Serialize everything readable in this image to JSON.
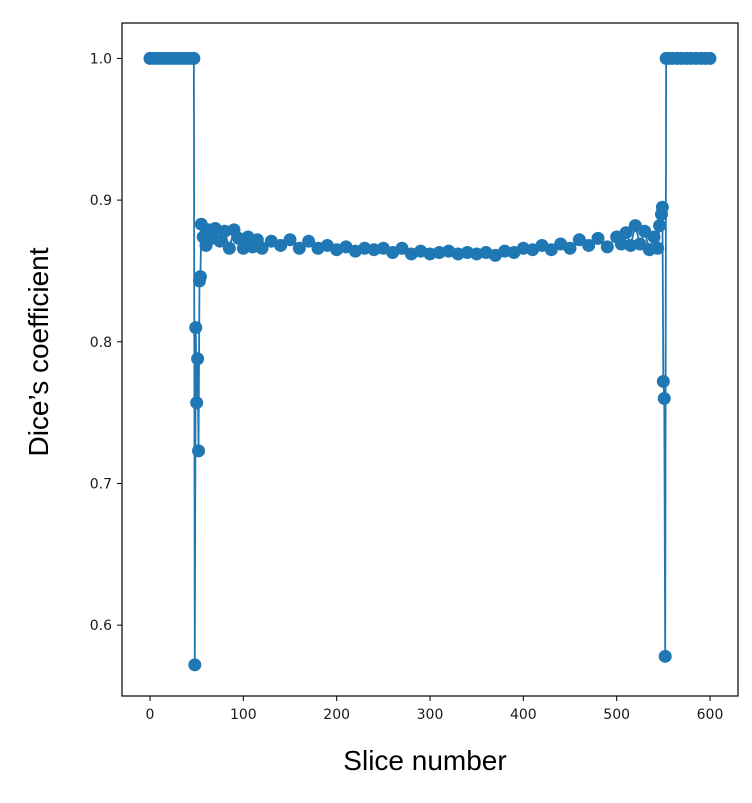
{
  "chart_data": {
    "type": "line",
    "title": "",
    "xlabel": "Slice number",
    "ylabel": "Dice’s coefficient",
    "xlim": [
      -30,
      630
    ],
    "ylim": [
      0.55,
      1.025
    ],
    "xticks": [
      0,
      100,
      200,
      300,
      400,
      500,
      600
    ],
    "xtick_labels": [
      "0",
      "100",
      "200",
      "300",
      "400",
      "500",
      "600"
    ],
    "yticks": [
      0.6,
      0.7,
      0.8,
      0.9,
      1.0
    ],
    "ytick_labels": [
      "0.6",
      "0.7",
      "0.8",
      "0.9",
      "1.0"
    ],
    "grid": false,
    "legend": "none",
    "marker": "circle",
    "color": "#1f77b4",
    "series": [
      {
        "x": [
          0,
          4,
          8,
          12,
          16,
          20,
          24,
          28,
          32,
          36,
          40,
          44,
          47,
          48,
          49,
          50,
          51,
          52,
          53,
          54,
          55,
          57,
          60,
          63,
          66,
          70,
          75,
          80,
          85,
          90,
          95,
          100,
          105,
          110,
          115,
          120,
          130,
          140,
          150,
          160,
          170,
          180,
          190,
          200,
          210,
          220,
          230,
          240,
          250,
          260,
          270,
          280,
          290,
          300,
          310,
          320,
          330,
          340,
          350,
          360,
          370,
          380,
          390,
          400,
          410,
          420,
          430,
          440,
          450,
          460,
          470,
          480,
          490,
          500,
          505,
          510,
          515,
          520,
          525,
          530,
          535,
          540,
          544,
          546,
          548,
          549,
          550,
          551,
          552,
          553,
          556,
          560,
          565,
          570,
          575,
          580,
          585,
          590,
          595,
          600
        ],
        "y": [
          1.0,
          1.0,
          1.0,
          1.0,
          1.0,
          1.0,
          1.0,
          1.0,
          1.0,
          1.0,
          1.0,
          1.0,
          1.0,
          0.572,
          0.81,
          0.757,
          0.788,
          0.723,
          0.843,
          0.846,
          0.883,
          0.874,
          0.868,
          0.879,
          0.873,
          0.88,
          0.871,
          0.878,
          0.866,
          0.879,
          0.873,
          0.866,
          0.874,
          0.867,
          0.872,
          0.866,
          0.871,
          0.868,
          0.872,
          0.866,
          0.871,
          0.866,
          0.868,
          0.865,
          0.867,
          0.864,
          0.866,
          0.865,
          0.866,
          0.863,
          0.866,
          0.862,
          0.864,
          0.862,
          0.863,
          0.864,
          0.862,
          0.863,
          0.862,
          0.863,
          0.861,
          0.864,
          0.863,
          0.866,
          0.865,
          0.868,
          0.865,
          0.869,
          0.866,
          0.872,
          0.868,
          0.873,
          0.867,
          0.874,
          0.869,
          0.877,
          0.868,
          0.882,
          0.869,
          0.878,
          0.865,
          0.874,
          0.866,
          0.882,
          0.89,
          0.895,
          0.772,
          0.76,
          0.578,
          1.0,
          1.0,
          1.0,
          1.0,
          1.0,
          1.0,
          1.0,
          1.0,
          1.0,
          1.0,
          1.0
        ]
      }
    ]
  }
}
